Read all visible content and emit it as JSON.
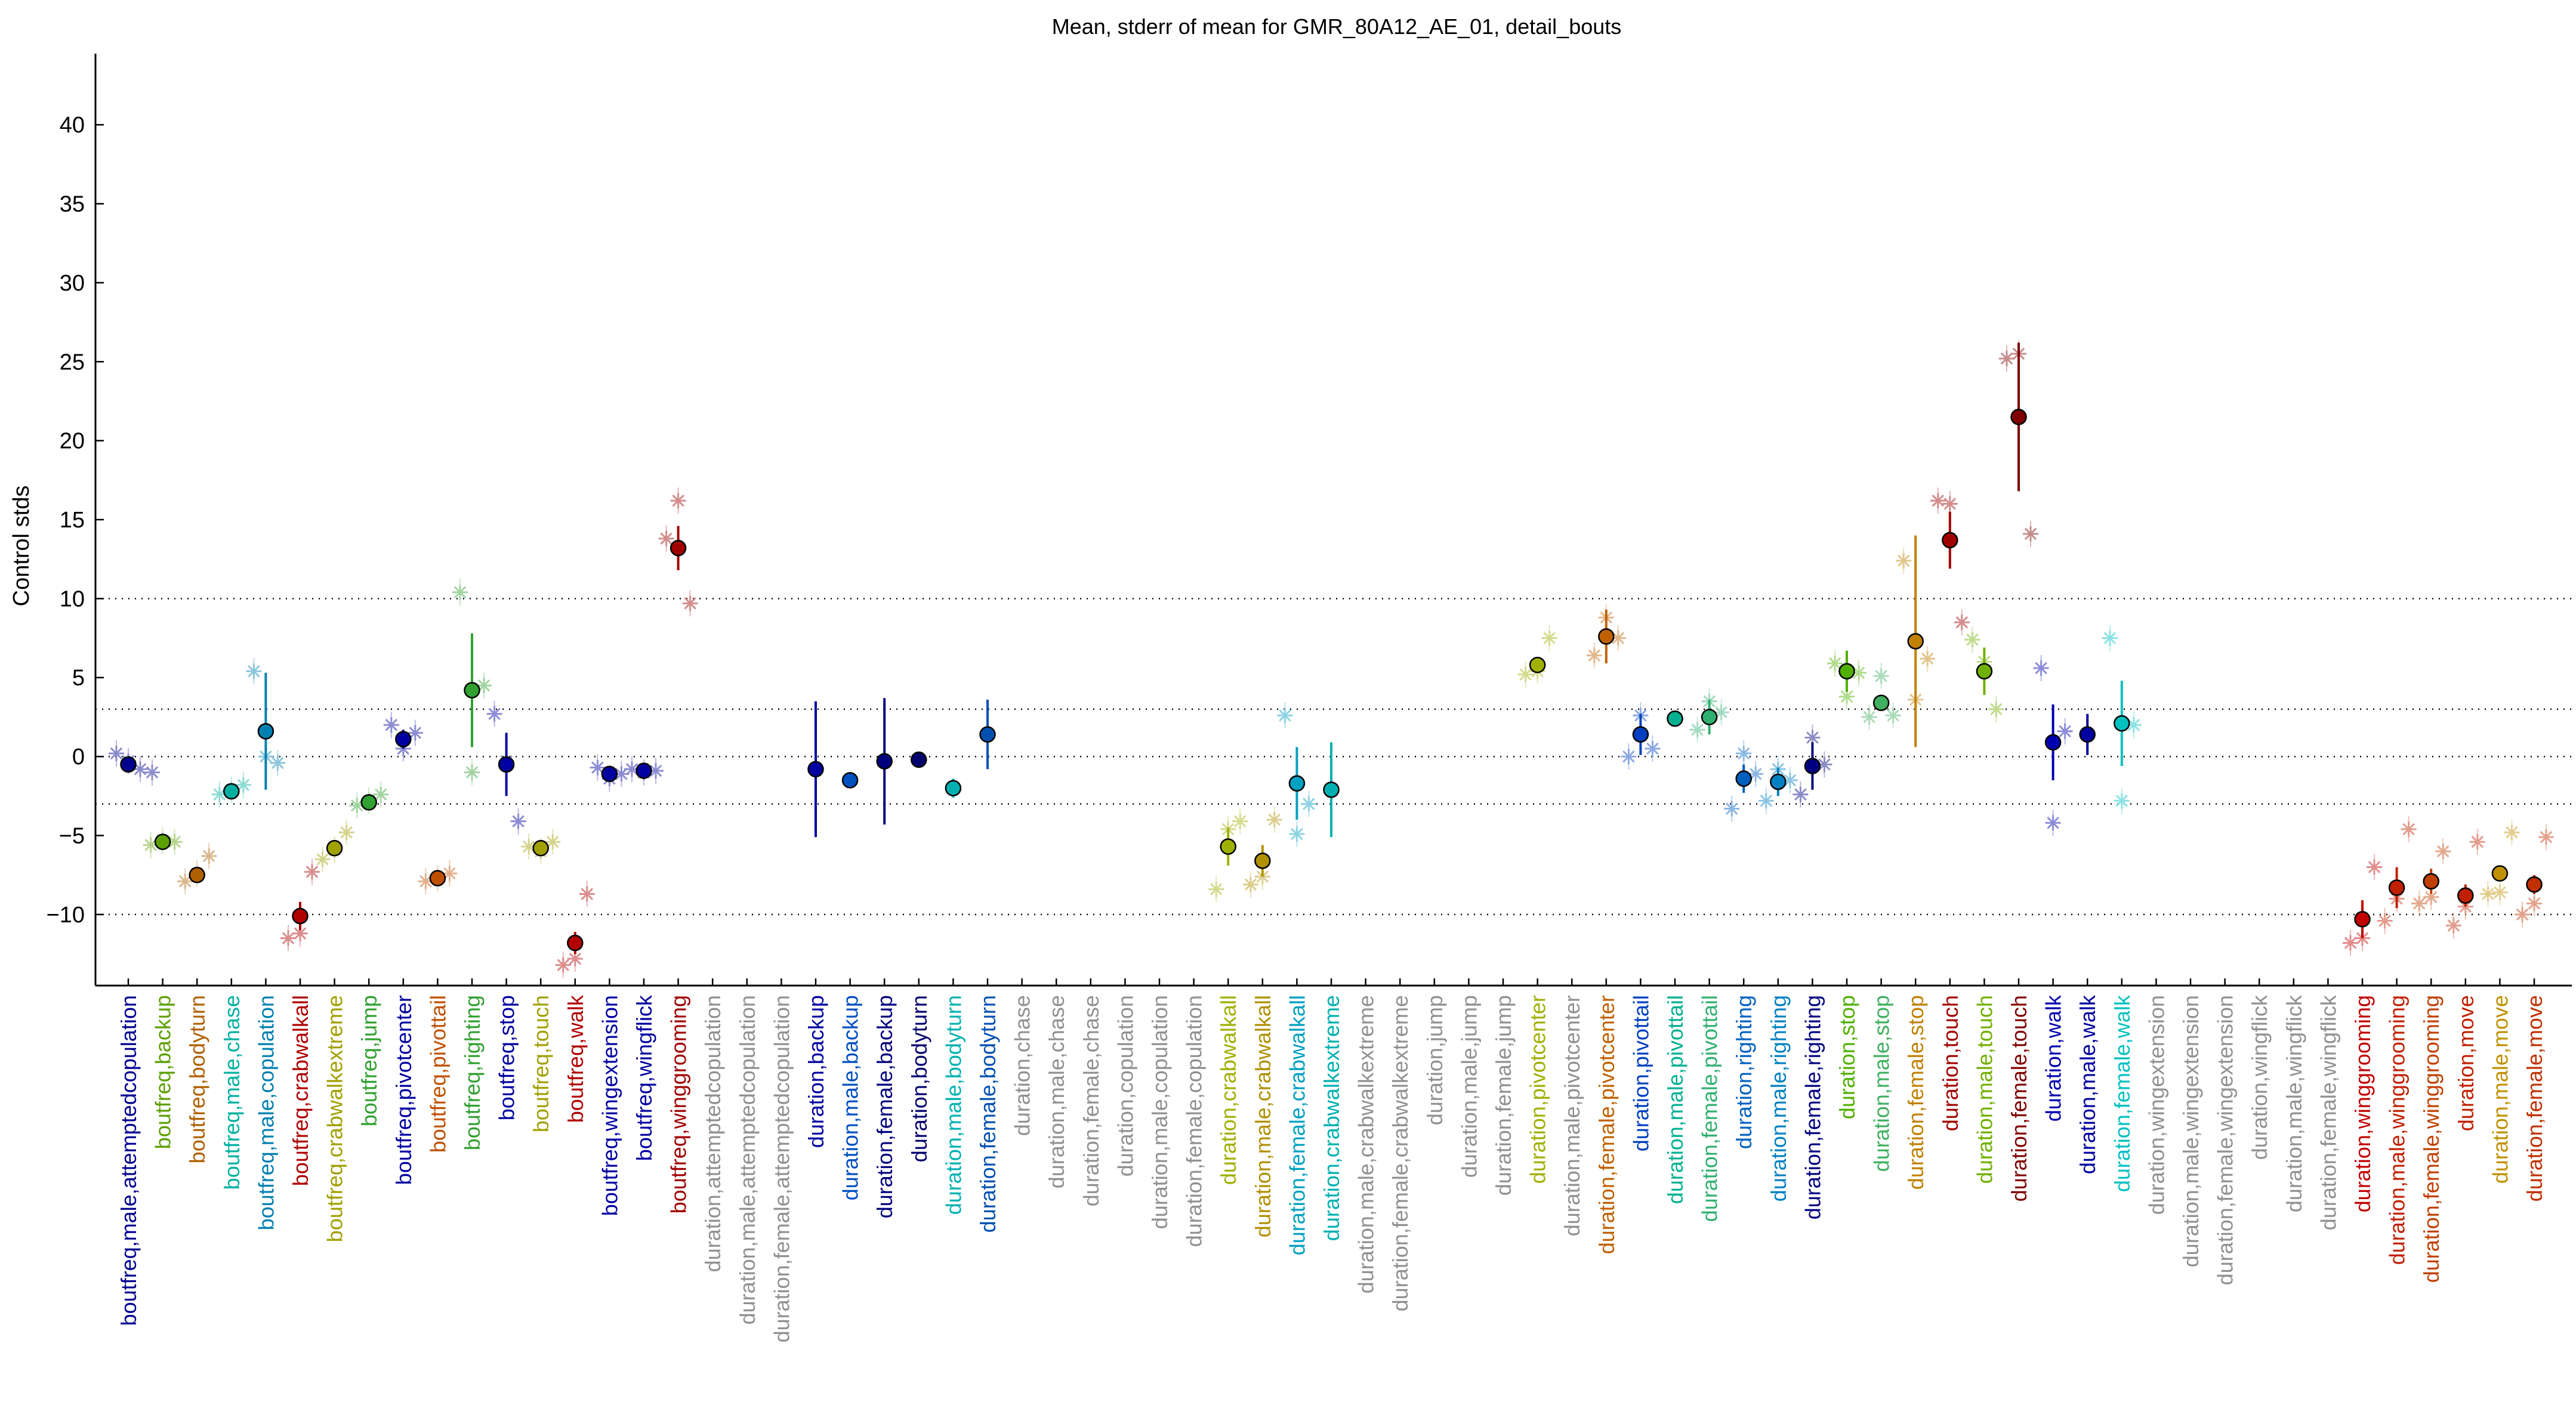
{
  "chart_data": {
    "type": "scatter",
    "title": "Mean, stderr of mean for GMR_80A12_AE_01, detail_bouts",
    "xlabel": "",
    "ylabel": "Control stds",
    "ylim": [
      -14.5,
      44.5
    ],
    "yticks": [
      -10,
      -5,
      0,
      5,
      10,
      15,
      20,
      25,
      30,
      35,
      40
    ],
    "reference_lines": [
      -10,
      -3,
      0,
      3,
      10
    ],
    "grid": false,
    "legend": "none",
    "categories": [
      {
        "label": "boutfreq,male,attemptedcopulation",
        "color": "#00008f",
        "mean": -0.5,
        "se": 0.25,
        "points": [
          0.2,
          -0.3,
          -0.8,
          -1.0
        ]
      },
      {
        "label": "boutfreq,backup",
        "color": "#5c9f00",
        "mean": -5.4,
        "se": 0.2,
        "points": [
          -5.6,
          -5.3,
          -5.4
        ]
      },
      {
        "label": "boutfreq,bodyturn",
        "color": "#b05f00",
        "mean": -7.5,
        "se": 0.2,
        "points": [
          -7.9,
          -7.4,
          -6.3
        ]
      },
      {
        "label": "boutfreq,male,chase",
        "color": "#00b0a0",
        "mean": -2.2,
        "se": 0.2,
        "points": [
          -2.4,
          -2.1,
          -1.8
        ]
      },
      {
        "label": "boutfreq,male,copulation",
        "color": "#0080b0",
        "mean": 1.6,
        "se": 3.7,
        "points": [
          5.4,
          0.0,
          -0.4
        ]
      },
      {
        "label": "boutfreq,crabwalkall",
        "color": "#b00000",
        "mean": -10.1,
        "se": 0.9,
        "points": [
          -11.5,
          -11.2,
          -7.3
        ]
      },
      {
        "label": "boutfreq,crabwalkextreme",
        "color": "#a0a000",
        "mean": -5.8,
        "se": 0.3,
        "points": [
          -6.5,
          -5.9,
          -4.8
        ]
      },
      {
        "label": "boutfreq,jump",
        "color": "#30a030",
        "mean": -2.9,
        "se": 0.2,
        "points": [
          -3.1,
          -2.8,
          -2.4
        ]
      },
      {
        "label": "boutfreq,pivotcenter",
        "color": "#0000a0",
        "mean": 1.1,
        "se": 0.6,
        "points": [
          2.0,
          0.5,
          1.5
        ]
      },
      {
        "label": "boutfreq,pivottail",
        "color": "#c05000",
        "mean": -7.7,
        "se": 0.1,
        "points": [
          -7.9,
          -7.7,
          -7.4
        ]
      },
      {
        "label": "boutfreq,righting",
        "color": "#30a030",
        "mean": 4.2,
        "se": 3.6,
        "points": [
          10.4,
          -1.0,
          4.5
        ]
      },
      {
        "label": "boutfreq,stop",
        "color": "#0000a0",
        "mean": -0.5,
        "se": 2.0,
        "points": [
          2.7,
          -0.3,
          -4.1
        ]
      },
      {
        "label": "boutfreq,touch",
        "color": "#a0a000",
        "mean": -5.8,
        "se": 0.2,
        "points": [
          -5.7,
          -6.0,
          -5.4
        ]
      },
      {
        "label": "boutfreq,walk",
        "color": "#b00000",
        "mean": -11.8,
        "se": 0.7,
        "points": [
          -13.2,
          -12.8,
          -8.7
        ]
      },
      {
        "label": "boutfreq,wingextension",
        "color": "#0000a0",
        "mean": -1.1,
        "se": 0.2,
        "points": [
          -0.7,
          -1.4,
          -1.1
        ]
      },
      {
        "label": "boutfreq,wingflick",
        "color": "#0000a0",
        "mean": -0.9,
        "se": 0.2,
        "points": [
          -0.8,
          -1.0,
          -0.9
        ]
      },
      {
        "label": "boutfreq,winggrooming",
        "color": "#a00000",
        "mean": 13.2,
        "se": 1.4,
        "points": [
          13.8,
          16.2,
          9.7
        ]
      },
      {
        "label": "duration,attemptedcopulation",
        "color": "#909090",
        "mean": null,
        "se": null,
        "points": []
      },
      {
        "label": "duration,male,attemptedcopulation",
        "color": "#909090",
        "mean": null,
        "se": null,
        "points": []
      },
      {
        "label": "duration,female,attemptedcopulation",
        "color": "#909090",
        "mean": null,
        "se": null,
        "points": []
      },
      {
        "label": "duration,backup",
        "color": "#0000a0",
        "mean": -0.8,
        "se": 4.3,
        "points": []
      },
      {
        "label": "duration,male,backup",
        "color": "#0050c0",
        "mean": -1.5,
        "se": 0.5,
        "points": []
      },
      {
        "label": "duration,female,backup",
        "color": "#00007f",
        "mean": -0.3,
        "se": 4.0,
        "points": []
      },
      {
        "label": "duration,bodyturn",
        "color": "#00006f",
        "mean": -0.2,
        "se": 0.4,
        "points": []
      },
      {
        "label": "duration,male,bodyturn",
        "color": "#00b0b0",
        "mean": -2.0,
        "se": 0.6,
        "points": []
      },
      {
        "label": "duration,female,bodyturn",
        "color": "#0050b0",
        "mean": 1.4,
        "se": 2.2,
        "points": []
      },
      {
        "label": "duration,chase",
        "color": "#909090",
        "mean": null,
        "se": null,
        "points": []
      },
      {
        "label": "duration,male,chase",
        "color": "#909090",
        "mean": null,
        "se": null,
        "points": []
      },
      {
        "label": "duration,female,chase",
        "color": "#909090",
        "mean": null,
        "se": null,
        "points": []
      },
      {
        "label": "duration,copulation",
        "color": "#909090",
        "mean": null,
        "se": null,
        "points": []
      },
      {
        "label": "duration,male,copulation",
        "color": "#909090",
        "mean": null,
        "se": null,
        "points": []
      },
      {
        "label": "duration,female,copulation",
        "color": "#909090",
        "mean": null,
        "se": null,
        "points": []
      },
      {
        "label": "duration,crabwalkall",
        "color": "#a0b000",
        "mean": -5.7,
        "se": 1.2,
        "points": [
          -8.4,
          -4.6,
          -4.1
        ]
      },
      {
        "label": "duration,male,crabwalkall",
        "color": "#b09000",
        "mean": -6.6,
        "se": 1.0,
        "points": [
          -8.1,
          -7.6,
          -4.0
        ]
      },
      {
        "label": "duration,female,crabwalkall",
        "color": "#00a0c0",
        "mean": -1.7,
        "se": 2.3,
        "points": [
          2.6,
          -4.9,
          -3.0
        ]
      },
      {
        "label": "duration,crabwalkextreme",
        "color": "#00b0b0",
        "mean": -2.1,
        "se": 3.0,
        "points": []
      },
      {
        "label": "duration,male,crabwalkextreme",
        "color": "#909090",
        "mean": null,
        "se": null,
        "points": []
      },
      {
        "label": "duration,female,crabwalkextreme",
        "color": "#909090",
        "mean": null,
        "se": null,
        "points": []
      },
      {
        "label": "duration,jump",
        "color": "#909090",
        "mean": null,
        "se": null,
        "points": []
      },
      {
        "label": "duration,male,jump",
        "color": "#909090",
        "mean": null,
        "se": null,
        "points": []
      },
      {
        "label": "duration,female,jump",
        "color": "#909090",
        "mean": null,
        "se": null,
        "points": []
      },
      {
        "label": "duration,pivotcenter",
        "color": "#a0b000",
        "mean": 5.8,
        "se": 0.4,
        "points": [
          5.2,
          5.4,
          7.5
        ]
      },
      {
        "label": "duration,male,pivotcenter",
        "color": "#909090",
        "mean": null,
        "se": null,
        "points": []
      },
      {
        "label": "duration,female,pivotcenter",
        "color": "#c06000",
        "mean": 7.6,
        "se": 1.7,
        "points": [
          6.4,
          8.8,
          7.5
        ]
      },
      {
        "label": "duration,pivottail",
        "color": "#0040c0",
        "mean": 1.4,
        "se": 1.3,
        "points": [
          0.0,
          2.6,
          0.5
        ]
      },
      {
        "label": "duration,male,pivottail",
        "color": "#00b090",
        "mean": 2.4,
        "se": 0.4,
        "points": []
      },
      {
        "label": "duration,female,pivottail",
        "color": "#30b070",
        "mean": 2.5,
        "se": 1.1,
        "points": [
          1.7,
          3.5,
          2.8
        ]
      },
      {
        "label": "duration,righting",
        "color": "#0060c0",
        "mean": -1.4,
        "se": 0.9,
        "points": [
          -3.3,
          0.2,
          -1.1
        ]
      },
      {
        "label": "duration,male,righting",
        "color": "#0080c0",
        "mean": -1.6,
        "se": 0.9,
        "points": [
          -2.8,
          -0.8,
          -1.5
        ]
      },
      {
        "label": "duration,female,righting",
        "color": "#000080",
        "mean": -0.6,
        "se": 1.5,
        "points": [
          -2.4,
          1.2,
          -0.5
        ]
      },
      {
        "label": "duration,stop",
        "color": "#50b000",
        "mean": 5.4,
        "se": 1.3,
        "points": [
          5.9,
          3.8,
          5.3
        ]
      },
      {
        "label": "duration,male,stop",
        "color": "#40b060",
        "mean": 3.4,
        "se": 0.5,
        "points": [
          2.5,
          5.1,
          2.6
        ]
      },
      {
        "label": "duration,female,stop",
        "color": "#c08000",
        "mean": 7.3,
        "se": 6.7,
        "points": [
          12.4,
          3.6,
          6.2
        ]
      },
      {
        "label": "duration,touch",
        "color": "#a00000",
        "mean": 13.7,
        "se": 1.8,
        "points": [
          16.2,
          16.0,
          8.5
        ]
      },
      {
        "label": "duration,male,touch",
        "color": "#70b000",
        "mean": 5.4,
        "se": 1.5,
        "points": [
          7.4,
          6.0,
          3.0
        ]
      },
      {
        "label": "duration,female,touch",
        "color": "#800000",
        "mean": 21.5,
        "se": 4.7,
        "points": [
          25.2,
          25.5,
          14.1
        ]
      },
      {
        "label": "duration,walk",
        "color": "#0000b0",
        "mean": 0.9,
        "se": 2.4,
        "points": [
          5.6,
          -4.2,
          1.6
        ]
      },
      {
        "label": "duration,male,walk",
        "color": "#0000a0",
        "mean": 1.4,
        "se": 1.3,
        "points": []
      },
      {
        "label": "duration,female,walk",
        "color": "#00c0c0",
        "mean": 2.1,
        "se": 2.7,
        "points": [
          7.5,
          -2.8,
          2.0
        ]
      },
      {
        "label": "duration,wingextension",
        "color": "#909090",
        "mean": null,
        "se": null,
        "points": []
      },
      {
        "label": "duration,male,wingextension",
        "color": "#909090",
        "mean": null,
        "se": null,
        "points": []
      },
      {
        "label": "duration,female,wingextension",
        "color": "#909090",
        "mean": null,
        "se": null,
        "points": []
      },
      {
        "label": "duration,wingflick",
        "color": "#909090",
        "mean": null,
        "se": null,
        "points": []
      },
      {
        "label": "duration,male,wingflick",
        "color": "#909090",
        "mean": null,
        "se": null,
        "points": []
      },
      {
        "label": "duration,female,wingflick",
        "color": "#909090",
        "mean": null,
        "se": null,
        "points": []
      },
      {
        "label": "duration,winggrooming",
        "color": "#c00000",
        "mean": -10.3,
        "se": 1.2,
        "points": [
          -11.8,
          -11.5,
          -7.0
        ]
      },
      {
        "label": "duration,male,winggrooming",
        "color": "#c02000",
        "mean": -8.3,
        "se": 1.3,
        "points": [
          -10.4,
          -9.0,
          -4.6
        ]
      },
      {
        "label": "duration,female,winggrooming",
        "color": "#c04000",
        "mean": -7.9,
        "se": 0.8,
        "points": [
          -9.3,
          -8.9,
          -6.0
        ]
      },
      {
        "label": "duration,move",
        "color": "#c02000",
        "mean": -8.8,
        "se": 0.7,
        "points": [
          -10.7,
          -9.5,
          -5.4
        ]
      },
      {
        "label": "duration,male,move",
        "color": "#c09000",
        "mean": -7.4,
        "se": 0.5,
        "points": [
          -8.7,
          -8.6,
          -4.8
        ]
      },
      {
        "label": "duration,female,move",
        "color": "#c03000",
        "mean": -8.1,
        "se": 0.6,
        "points": [
          -10.0,
          -9.3,
          -5.1
        ]
      }
    ]
  }
}
